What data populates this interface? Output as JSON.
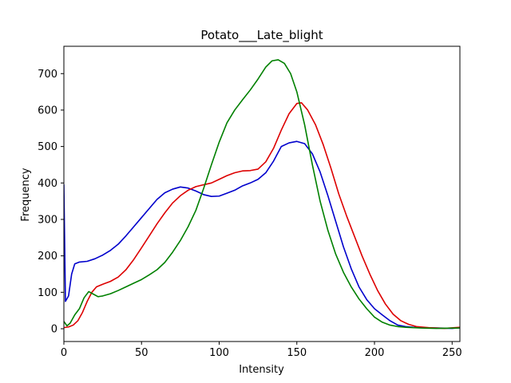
{
  "chart_data": {
    "type": "line",
    "title": "Potato___Late_blight",
    "xlabel": "Intensity",
    "ylabel": "Frequency",
    "xlim": [
      0,
      255
    ],
    "ylim": [
      -35,
      775
    ],
    "xticks": [
      0,
      50,
      100,
      150,
      200,
      250
    ],
    "yticks": [
      0,
      100,
      200,
      300,
      400,
      500,
      600,
      700
    ],
    "grid": false,
    "legend": "none",
    "series": [
      {
        "color": "#0000cc",
        "points": [
          [
            0,
            395
          ],
          [
            1,
            75
          ],
          [
            3,
            90
          ],
          [
            5,
            150
          ],
          [
            7,
            178
          ],
          [
            10,
            183
          ],
          [
            15,
            185
          ],
          [
            20,
            192
          ],
          [
            25,
            202
          ],
          [
            30,
            215
          ],
          [
            35,
            232
          ],
          [
            40,
            255
          ],
          [
            45,
            280
          ],
          [
            50,
            305
          ],
          [
            55,
            330
          ],
          [
            60,
            355
          ],
          [
            65,
            373
          ],
          [
            70,
            383
          ],
          [
            75,
            389
          ],
          [
            80,
            386
          ],
          [
            85,
            378
          ],
          [
            90,
            368
          ],
          [
            95,
            363
          ],
          [
            100,
            364
          ],
          [
            105,
            372
          ],
          [
            110,
            380
          ],
          [
            115,
            392
          ],
          [
            120,
            400
          ],
          [
            125,
            410
          ],
          [
            130,
            428
          ],
          [
            135,
            460
          ],
          [
            140,
            500
          ],
          [
            145,
            510
          ],
          [
            150,
            514
          ],
          [
            155,
            508
          ],
          [
            160,
            480
          ],
          [
            165,
            430
          ],
          [
            170,
            365
          ],
          [
            175,
            295
          ],
          [
            180,
            225
          ],
          [
            185,
            165
          ],
          [
            190,
            115
          ],
          [
            195,
            80
          ],
          [
            200,
            55
          ],
          [
            205,
            38
          ],
          [
            210,
            22
          ],
          [
            215,
            10
          ],
          [
            220,
            6
          ],
          [
            225,
            4
          ],
          [
            230,
            3
          ],
          [
            240,
            2
          ],
          [
            250,
            1
          ],
          [
            255,
            3
          ]
        ]
      },
      {
        "color": "#dd0000",
        "points": [
          [
            0,
            3
          ],
          [
            3,
            5
          ],
          [
            6,
            10
          ],
          [
            9,
            22
          ],
          [
            12,
            45
          ],
          [
            15,
            75
          ],
          [
            18,
            100
          ],
          [
            21,
            115
          ],
          [
            25,
            122
          ],
          [
            30,
            130
          ],
          [
            35,
            142
          ],
          [
            40,
            162
          ],
          [
            45,
            190
          ],
          [
            50,
            222
          ],
          [
            55,
            255
          ],
          [
            60,
            288
          ],
          [
            65,
            318
          ],
          [
            70,
            345
          ],
          [
            75,
            365
          ],
          [
            80,
            380
          ],
          [
            85,
            390
          ],
          [
            90,
            395
          ],
          [
            95,
            400
          ],
          [
            100,
            410
          ],
          [
            105,
            420
          ],
          [
            110,
            428
          ],
          [
            115,
            433
          ],
          [
            120,
            434
          ],
          [
            125,
            438
          ],
          [
            130,
            458
          ],
          [
            135,
            495
          ],
          [
            140,
            545
          ],
          [
            145,
            590
          ],
          [
            150,
            618
          ],
          [
            153,
            620
          ],
          [
            157,
            600
          ],
          [
            162,
            560
          ],
          [
            167,
            505
          ],
          [
            172,
            440
          ],
          [
            177,
            370
          ],
          [
            182,
            310
          ],
          [
            187,
            255
          ],
          [
            192,
            200
          ],
          [
            197,
            150
          ],
          [
            202,
            105
          ],
          [
            207,
            68
          ],
          [
            212,
            40
          ],
          [
            217,
            22
          ],
          [
            222,
            12
          ],
          [
            227,
            6
          ],
          [
            235,
            3
          ],
          [
            245,
            1
          ],
          [
            255,
            4
          ]
        ]
      },
      {
        "color": "#008000",
        "points": [
          [
            0,
            20
          ],
          [
            2,
            8
          ],
          [
            4,
            15
          ],
          [
            7,
            38
          ],
          [
            10,
            55
          ],
          [
            13,
            85
          ],
          [
            16,
            102
          ],
          [
            19,
            95
          ],
          [
            22,
            88
          ],
          [
            25,
            90
          ],
          [
            30,
            96
          ],
          [
            35,
            105
          ],
          [
            40,
            115
          ],
          [
            45,
            125
          ],
          [
            50,
            135
          ],
          [
            55,
            148
          ],
          [
            60,
            162
          ],
          [
            65,
            182
          ],
          [
            70,
            210
          ],
          [
            75,
            242
          ],
          [
            80,
            280
          ],
          [
            85,
            325
          ],
          [
            90,
            385
          ],
          [
            95,
            450
          ],
          [
            100,
            512
          ],
          [
            105,
            565
          ],
          [
            110,
            600
          ],
          [
            115,
            628
          ],
          [
            120,
            655
          ],
          [
            125,
            685
          ],
          [
            130,
            718
          ],
          [
            134,
            735
          ],
          [
            138,
            738
          ],
          [
            142,
            728
          ],
          [
            146,
            700
          ],
          [
            150,
            650
          ],
          [
            155,
            560
          ],
          [
            160,
            450
          ],
          [
            165,
            350
          ],
          [
            170,
            270
          ],
          [
            175,
            205
          ],
          [
            180,
            155
          ],
          [
            185,
            115
          ],
          [
            190,
            82
          ],
          [
            195,
            55
          ],
          [
            200,
            32
          ],
          [
            205,
            18
          ],
          [
            210,
            10
          ],
          [
            215,
            6
          ],
          [
            220,
            4
          ],
          [
            230,
            2
          ],
          [
            240,
            1
          ],
          [
            255,
            2
          ]
        ]
      }
    ]
  }
}
